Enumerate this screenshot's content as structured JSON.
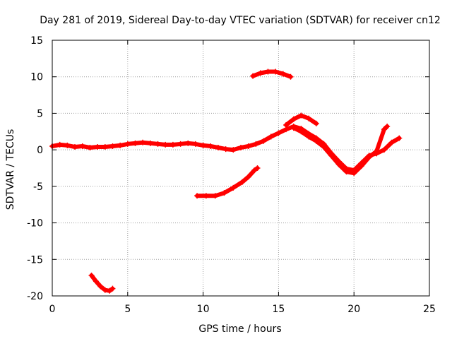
{
  "chart_data": {
    "type": "scatter",
    "title": "Day 281 of 2019, Sidereal Day-to-day VTEC variation (SDTVAR) for receiver cn12",
    "xlabel": "GPS time / hours",
    "ylabel": "SDTVAR / TECUs",
    "xlim": [
      0,
      25
    ],
    "ylim": [
      -20,
      15
    ],
    "xticks": [
      0,
      5,
      10,
      15,
      20,
      25
    ],
    "yticks": [
      -20,
      -15,
      -10,
      -5,
      0,
      5,
      10,
      15
    ],
    "xtick_labels": [
      "0",
      "5",
      "10",
      "15",
      "20",
      "25"
    ],
    "ytick_labels": [
      "-20",
      "-15",
      "-10",
      "-5",
      "0",
      "5",
      "10",
      "15"
    ],
    "grid": true,
    "legend": "none",
    "color": "#ff0000",
    "series": [
      {
        "name": "main-band",
        "points": [
          [
            0.0,
            0.5
          ],
          [
            0.5,
            0.7
          ],
          [
            1.0,
            0.6
          ],
          [
            1.5,
            0.4
          ],
          [
            2.0,
            0.5
          ],
          [
            2.5,
            0.3
          ],
          [
            3.0,
            0.4
          ],
          [
            3.5,
            0.4
          ],
          [
            4.0,
            0.5
          ],
          [
            4.5,
            0.6
          ],
          [
            5.0,
            0.8
          ],
          [
            5.5,
            0.9
          ],
          [
            6.0,
            1.0
          ],
          [
            6.5,
            0.9
          ],
          [
            7.0,
            0.8
          ],
          [
            7.5,
            0.7
          ],
          [
            8.0,
            0.7
          ],
          [
            8.5,
            0.8
          ],
          [
            9.0,
            0.9
          ],
          [
            9.5,
            0.8
          ],
          [
            10.0,
            0.6
          ],
          [
            10.5,
            0.5
          ],
          [
            11.0,
            0.3
          ],
          [
            11.5,
            0.1
          ],
          [
            12.0,
            0.0
          ],
          [
            12.5,
            0.3
          ],
          [
            13.0,
            0.5
          ],
          [
            13.5,
            0.8
          ],
          [
            14.0,
            1.2
          ],
          [
            14.5,
            1.8
          ],
          [
            15.0,
            2.3
          ],
          [
            15.5,
            2.8
          ],
          [
            16.0,
            3.2
          ],
          [
            16.5,
            2.9
          ],
          [
            17.0,
            2.2
          ],
          [
            17.5,
            1.6
          ],
          [
            18.0,
            0.8
          ],
          [
            18.5,
            -0.5
          ],
          [
            19.0,
            -1.6
          ],
          [
            19.5,
            -2.6
          ],
          [
            20.0,
            -2.8
          ],
          [
            20.5,
            -1.8
          ],
          [
            21.0,
            -0.8
          ],
          [
            21.5,
            -0.5
          ],
          [
            22.0,
            0.0
          ],
          [
            22.5,
            1.0
          ],
          [
            23.0,
            1.6
          ]
        ]
      },
      {
        "name": "upper-band",
        "points": [
          [
            15.5,
            3.4
          ],
          [
            16.0,
            4.2
          ],
          [
            16.5,
            4.7
          ],
          [
            17.0,
            4.3
          ],
          [
            17.5,
            3.6
          ]
        ]
      },
      {
        "name": "lower-band",
        "points": [
          [
            16.0,
            3.0
          ],
          [
            16.5,
            2.5
          ],
          [
            17.0,
            1.8
          ],
          [
            17.5,
            1.2
          ],
          [
            18.0,
            0.4
          ],
          [
            18.5,
            -0.8
          ],
          [
            19.0,
            -2.0
          ],
          [
            19.5,
            -3.0
          ],
          [
            20.0,
            -3.2
          ],
          [
            20.5,
            -2.2
          ],
          [
            21.0,
            -1.0
          ],
          [
            21.5,
            -0.2
          ],
          [
            22.0,
            2.8
          ],
          [
            22.2,
            3.2
          ]
        ]
      },
      {
        "name": "arc-top",
        "points": [
          [
            13.3,
            10.1
          ],
          [
            13.8,
            10.5
          ],
          [
            14.3,
            10.7
          ],
          [
            14.8,
            10.7
          ],
          [
            15.3,
            10.4
          ],
          [
            15.8,
            10.0
          ]
        ]
      },
      {
        "name": "arc-middle",
        "points": [
          [
            9.6,
            -6.3
          ],
          [
            10.2,
            -6.3
          ],
          [
            10.8,
            -6.3
          ],
          [
            11.4,
            -5.9
          ],
          [
            12.0,
            -5.2
          ],
          [
            12.6,
            -4.4
          ],
          [
            13.0,
            -3.7
          ],
          [
            13.4,
            -2.8
          ],
          [
            13.6,
            -2.5
          ]
        ]
      },
      {
        "name": "arc-bottom",
        "points": [
          [
            2.6,
            -17.2
          ],
          [
            2.9,
            -18.0
          ],
          [
            3.2,
            -18.7
          ],
          [
            3.5,
            -19.2
          ],
          [
            3.8,
            -19.3
          ],
          [
            4.0,
            -19.0
          ]
        ]
      }
    ]
  }
}
